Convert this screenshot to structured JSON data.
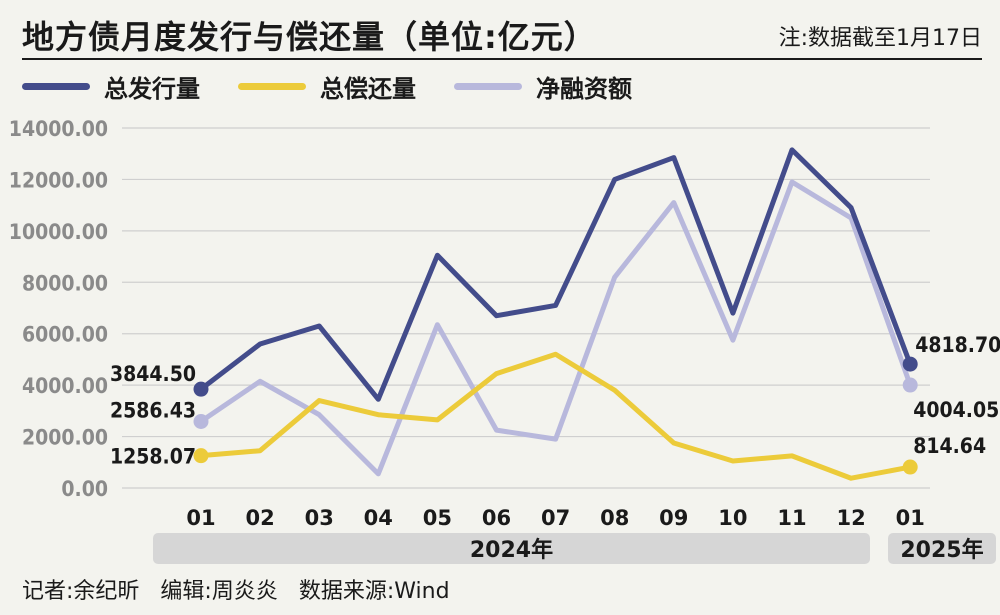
{
  "title": "地方债月度发行与偿还量（单位:亿元）",
  "note": "注:数据截至1月17日",
  "legend": [
    {
      "label": "总发行量",
      "color": "#434c8b"
    },
    {
      "label": "总偿还量",
      "color": "#eccb3a"
    },
    {
      "label": "净融资额",
      "color": "#b8b8dc"
    }
  ],
  "footer": {
    "reporter": "记者:余纪昕",
    "editor": "编辑:周炎炎",
    "source": "数据来源:Wind"
  },
  "chart_data": {
    "type": "line",
    "categories": [
      "01",
      "02",
      "03",
      "04",
      "05",
      "06",
      "07",
      "08",
      "09",
      "10",
      "11",
      "12",
      "01"
    ],
    "year_groups": [
      {
        "label": "2024年",
        "from": 0,
        "to": 11
      },
      {
        "label": "2025年",
        "from": 12,
        "to": 12
      }
    ],
    "y_ticks": [
      "0.00",
      "2000.00",
      "4000.00",
      "6000.00",
      "8000.00",
      "10000.00",
      "12000.00",
      "14000.00"
    ],
    "ylim": [
      0,
      14000
    ],
    "grid": true,
    "series": [
      {
        "name": "总发行量",
        "color": "#434c8b",
        "values": [
          3844.5,
          5600,
          6300,
          3450,
          9050,
          6700,
          7100,
          12000,
          12850,
          6800,
          13150,
          10900,
          4818.7
        ],
        "labels": [
          {
            "index": 0,
            "text": "3844.50"
          },
          {
            "index": 12,
            "text": "4818.70"
          }
        ]
      },
      {
        "name": "总偿还量",
        "color": "#eccb3a",
        "values": [
          1258.07,
          1450,
          3400,
          2850,
          2650,
          4450,
          5200,
          3800,
          1750,
          1050,
          1250,
          380,
          814.64
        ],
        "labels": [
          {
            "index": 0,
            "text": "1258.07"
          },
          {
            "index": 12,
            "text": "814.64"
          }
        ]
      },
      {
        "name": "净融资额",
        "color": "#b8b8dc",
        "values": [
          2586.43,
          4150,
          2850,
          550,
          6350,
          2250,
          1900,
          8200,
          11100,
          5750,
          11900,
          10500,
          4004.05
        ],
        "labels": [
          {
            "index": 0,
            "text": "2586.43"
          },
          {
            "index": 12,
            "text": "4004.05"
          }
        ]
      }
    ]
  }
}
